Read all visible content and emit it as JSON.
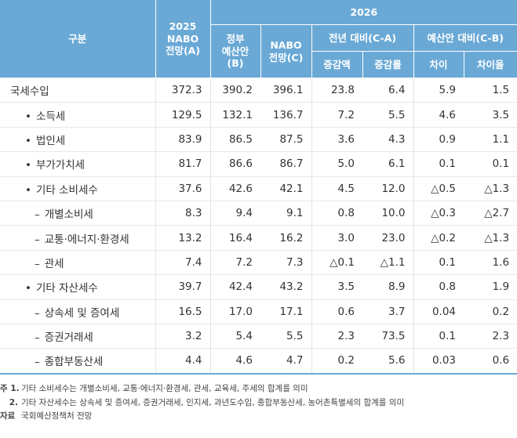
{
  "header": {
    "category": "구분",
    "col2025": "2025\nNABO\n전망(A)",
    "year2026": "2026",
    "gov": "정부\n예산안\n(B)",
    "nabo": "NABO\n전망(C)",
    "yoy": "전년 대비(C-A)",
    "vsBudget": "예산안 대비(C-B)",
    "incAmount": "증감액",
    "incRate": "증감률",
    "diff": "차이",
    "diffRate": "차이율"
  },
  "rows": [
    {
      "label": "국세수입",
      "values": [
        "372.3",
        "390.2",
        "396.1",
        "23.8",
        "6.4",
        "5.9",
        "1.5"
      ]
    },
    {
      "label": "소득세",
      "values": [
        "129.5",
        "132.1",
        "136.7",
        "7.2",
        "5.5",
        "4.6",
        "3.5"
      ]
    },
    {
      "label": "법인세",
      "values": [
        "83.9",
        "86.5",
        "87.5",
        "3.6",
        "4.3",
        "0.9",
        "1.1"
      ]
    },
    {
      "label": "부가가치세",
      "values": [
        "81.7",
        "86.6",
        "86.7",
        "5.0",
        "6.1",
        "0.1",
        "0.1"
      ]
    },
    {
      "label": "기타 소비세수",
      "values": [
        "37.6",
        "42.6",
        "42.1",
        "4.5",
        "12.0",
        "△0.5",
        "△1.3"
      ]
    },
    {
      "label": "개별소비세",
      "values": [
        "8.3",
        "9.4",
        "9.1",
        "0.8",
        "10.0",
        "△0.3",
        "△2.7"
      ]
    },
    {
      "label": "교통·에너지·환경세",
      "values": [
        "13.2",
        "16.4",
        "16.2",
        "3.0",
        "23.0",
        "△0.2",
        "△1.3"
      ]
    },
    {
      "label": "관세",
      "values": [
        "7.4",
        "7.2",
        "7.3",
        "△0.1",
        "△1.1",
        "0.1",
        "1.6"
      ]
    },
    {
      "label": "기타 자산세수",
      "values": [
        "39.7",
        "42.4",
        "43.2",
        "3.5",
        "8.9",
        "0.8",
        "1.9"
      ]
    },
    {
      "label": "상속세 및 증여세",
      "values": [
        "16.5",
        "17.0",
        "17.1",
        "0.6",
        "3.7",
        "0.04",
        "0.2"
      ]
    },
    {
      "label": "증권거래세",
      "values": [
        "3.2",
        "5.4",
        "5.5",
        "2.3",
        "73.5",
        "0.1",
        "2.3"
      ]
    },
    {
      "label": "종합부동산세",
      "values": [
        "4.4",
        "4.6",
        "4.7",
        "0.2",
        "5.6",
        "0.03",
        "0.6"
      ]
    }
  ],
  "markers": {
    "bullet": "•",
    "dash": "–"
  },
  "notes": {
    "label1": "주 1.",
    "text1": "기타 소비세수는 개별소비세, 교통·에너지·환경세, 관세, 교육세, 주세의 합계를 의미",
    "label2": "2.",
    "text2": "기타 자산세수는 상속세 및 증여세, 증권거래세, 인지세, 과년도수입, 종합부동산세, 농어촌특별세의 합계를 의미",
    "sourceLabel": "자료",
    "sourceText": "국회예산정책처 전망"
  },
  "colors": {
    "headerBg": "#6aa9d6",
    "headerText": "#ffffff",
    "rowLine": "#e8e8e8"
  }
}
